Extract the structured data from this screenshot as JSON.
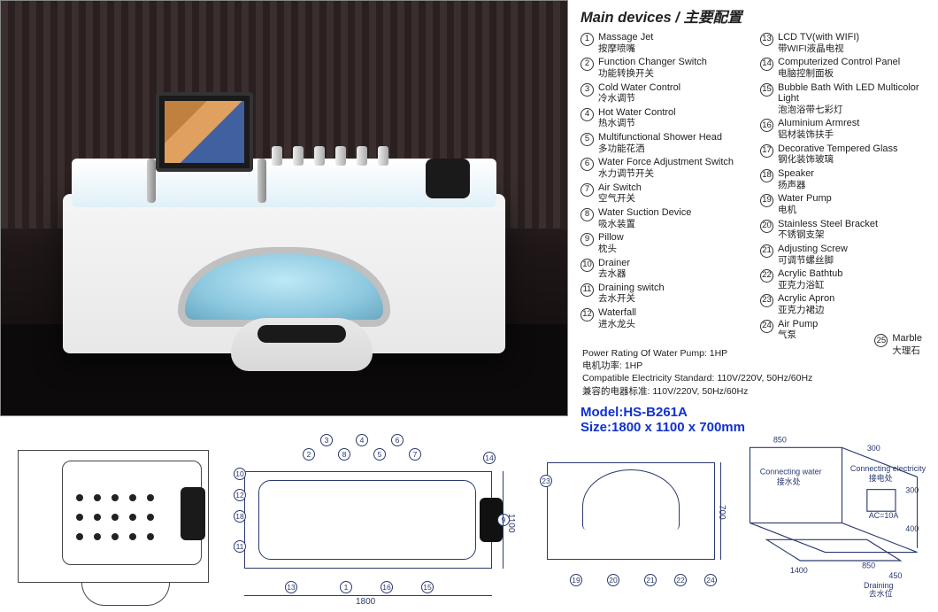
{
  "header": {
    "title_en": "Main devices",
    "title_sep": " / ",
    "title_cn": "主要配置"
  },
  "devices_left": [
    {
      "n": "1",
      "en": "Massage Jet",
      "cn": "按摩喷嘴"
    },
    {
      "n": "2",
      "en": "Function Changer Switch",
      "cn": "功能转换开关"
    },
    {
      "n": "3",
      "en": "Cold Water Control",
      "cn": "冷水调节"
    },
    {
      "n": "4",
      "en": "Hot Water Control",
      "cn": "热水调节"
    },
    {
      "n": "5",
      "en": "Multifunctional Shower Head",
      "cn": "多功能花洒"
    },
    {
      "n": "6",
      "en": "Water Force Adjustment Switch",
      "cn": "水力调节开关"
    },
    {
      "n": "7",
      "en": "Air Switch",
      "cn": "空气开关"
    },
    {
      "n": "8",
      "en": "Water Suction Device",
      "cn": "吸水装置"
    },
    {
      "n": "9",
      "en": "Pillow",
      "cn": "枕头"
    },
    {
      "n": "10",
      "en": "Drainer",
      "cn": "去水器"
    },
    {
      "n": "11",
      "en": "Draining switch",
      "cn": "去水开关"
    },
    {
      "n": "12",
      "en": "Waterfall",
      "cn": "进水龙头"
    }
  ],
  "devices_right": [
    {
      "n": "13",
      "en": "LCD  TV(with WIFI)",
      "cn": "带WIFI液晶电视"
    },
    {
      "n": "14",
      "en": "Computerized Control Panel",
      "cn": "电脑控制面板"
    },
    {
      "n": "15",
      "en": "Bubble Bath With LED Multicolor Light",
      "cn": "泡泡浴带七彩灯"
    },
    {
      "n": "16",
      "en": "Aluminium  Armrest",
      "cn": "铝材装饰扶手"
    },
    {
      "n": "17",
      "en": "Decorative Tempered Glass",
      "cn": "钢化装饰玻璃"
    },
    {
      "n": "18",
      "en": "Speaker",
      "cn": "扬声器"
    },
    {
      "n": "19",
      "en": "Water Pump",
      "cn": "电机"
    },
    {
      "n": "20",
      "en": "Stainless Steel Bracket",
      "cn": "不锈钢支架"
    },
    {
      "n": "21",
      "en": "Adjusting Screw",
      "cn": "可调节螺丝脚"
    },
    {
      "n": "22",
      "en": "Acrylic Bathtub",
      "cn": "亚克力浴缸"
    },
    {
      "n": "23",
      "en": "Acrylic Apron",
      "cn": "亚克力裙边"
    },
    {
      "n": "24",
      "en": "Air Pump",
      "cn": "气泵"
    }
  ],
  "device_25": {
    "n": "25",
    "en": "Marble",
    "cn": "大理石"
  },
  "extras": {
    "pump_en": "Power Rating Of Water Pump:  1HP",
    "pump_cn": "电机功率: 1HP",
    "elec_en": "Compatible Electricity Standard:   110V/220V, 50Hz/60Hz",
    "elec_cn": "兼容的电器标准: 110V/220V, 50Hz/60Hz"
  },
  "model": {
    "label": "Model:",
    "value": "HS-B261A"
  },
  "size": {
    "label": "Size:",
    "value": "1800 x 1100 x 700mm"
  },
  "diagram": {
    "d2": {
      "width_label": "1800",
      "height_label": "1100",
      "callouts_top": [
        "2",
        "3",
        "8",
        "4",
        "5",
        "6",
        "7"
      ],
      "callouts": {
        "c10": "10",
        "c12": "12",
        "c18": "18",
        "c11": "11",
        "c13": "13",
        "c1": "1",
        "c16": "16",
        "c15": "15",
        "c14": "14",
        "c9": "9"
      }
    },
    "d3": {
      "height_label": "700",
      "callouts": {
        "c23": "23",
        "c19": "19",
        "c20": "20",
        "c21": "21",
        "c22": "22",
        "c24": "24"
      }
    },
    "d4": {
      "a": "850",
      "b": "300",
      "c": "300",
      "d": "400",
      "e": "1400",
      "f": "850",
      "g": "450",
      "conn_water_en": "Connecting water",
      "conn_water_cn": "接水处",
      "conn_elec_en": "Connecting electricity",
      "conn_elec_cn": "接电处",
      "ac": "AC=10A",
      "drain_en": "Draining",
      "drain_cn": "去水位"
    }
  },
  "colors": {
    "accent": "#1030d0",
    "diagram_stroke": "#2a3a70",
    "text": "#222222",
    "bg": "#ffffff"
  }
}
